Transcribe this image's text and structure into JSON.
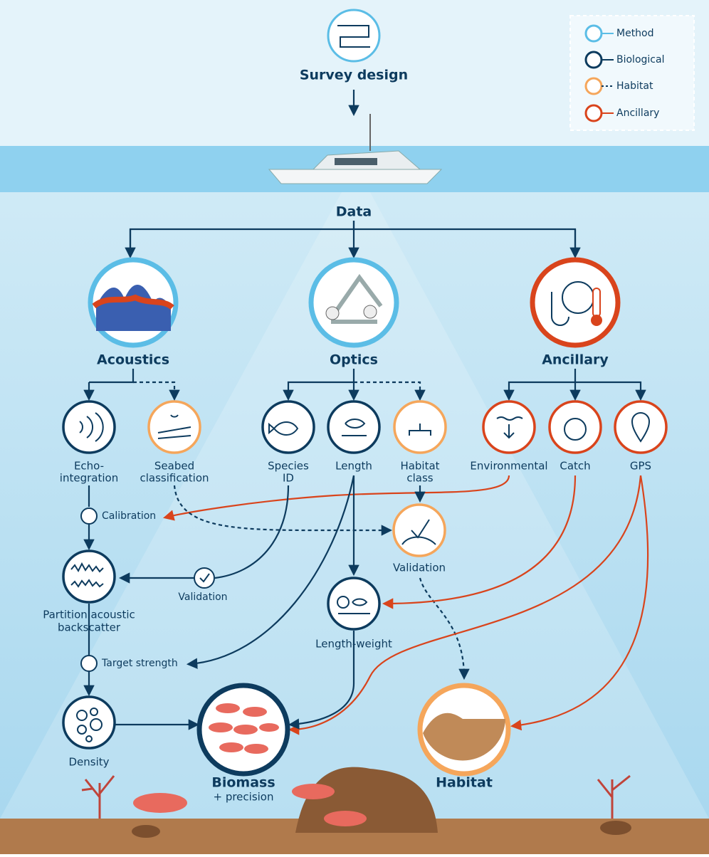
{
  "legend": {
    "items": [
      {
        "label": "Method"
      },
      {
        "label": "Biological"
      },
      {
        "label": "Habitat"
      },
      {
        "label": "Ancillary"
      }
    ]
  },
  "nodes": {
    "survey_design": "Survey design",
    "data": "Data",
    "acoustics": "Acoustics",
    "optics": "Optics",
    "ancillary": "Ancillary",
    "echo_integration": [
      "Echo-",
      "integration"
    ],
    "seabed_classification": [
      "Seabed",
      "classification"
    ],
    "species_id": [
      "Species",
      "ID"
    ],
    "length": "Length",
    "habitat_class": [
      "Habitat",
      "class"
    ],
    "environmental": "Environmental",
    "catch": "Catch",
    "gps": "GPS",
    "calibration": "Calibration",
    "validation_habitat": "Validation",
    "validation_acoustic": "Validation",
    "partition": [
      "Partition acoustic",
      "backscatter"
    ],
    "length_weight": "Length-weight",
    "target_strength": "Target strength",
    "density": "Density",
    "biomass": [
      "Biomass",
      "+ precision"
    ],
    "habitat": "Habitat"
  }
}
